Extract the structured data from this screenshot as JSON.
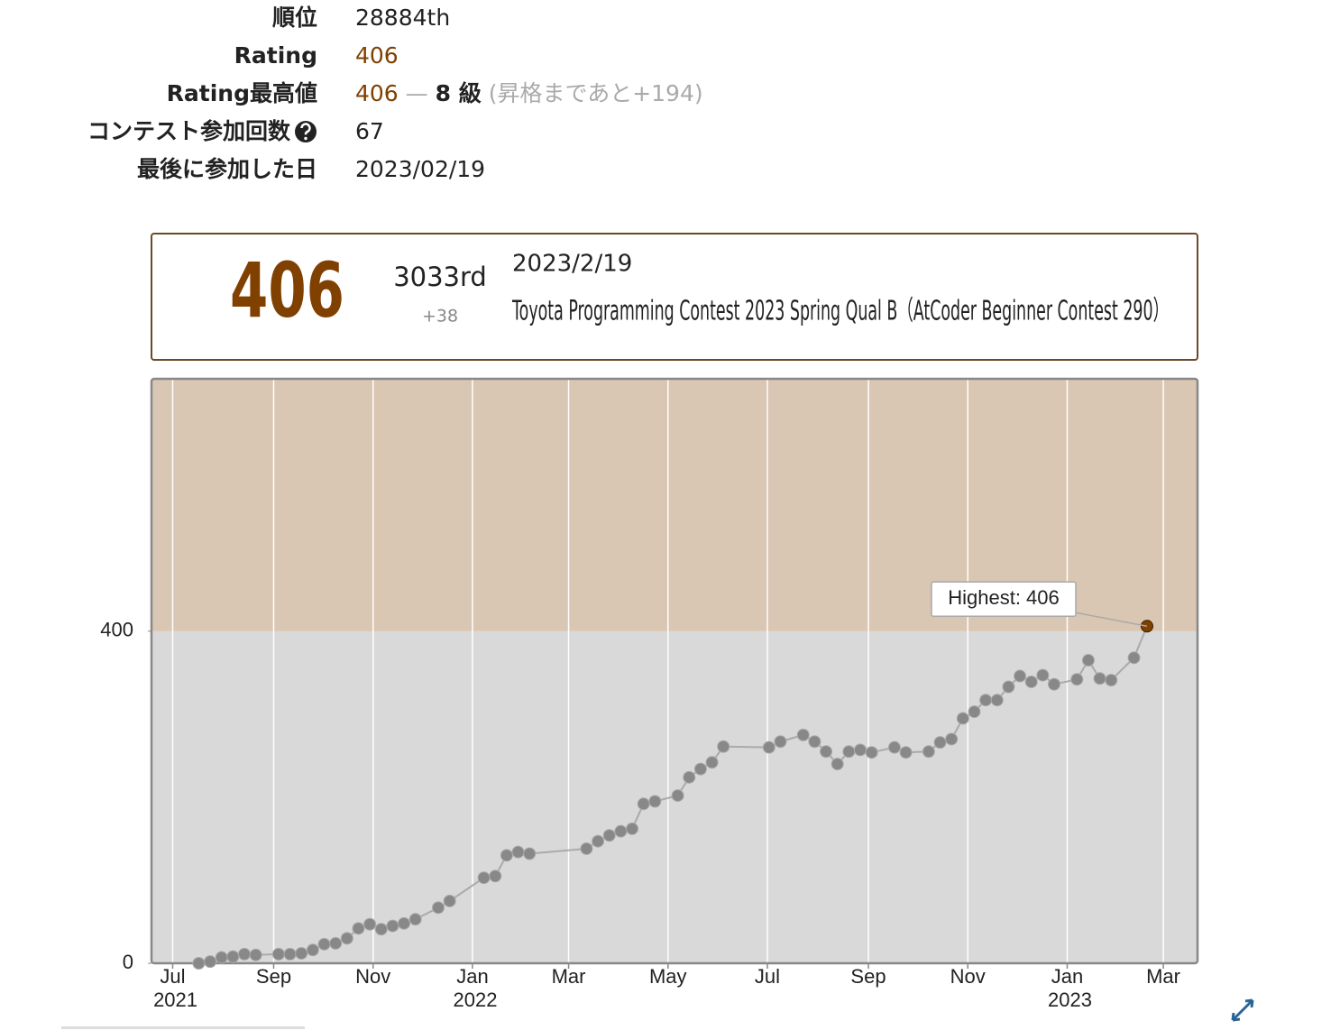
{
  "profile": {
    "rows": [
      {
        "label": "順位",
        "value": "28884th"
      },
      {
        "label": "Rating",
        "value": "406"
      },
      {
        "label": "Rating最高値",
        "value": {
          "rating": "406",
          "separator": "—",
          "rank": "8 級",
          "note": "(昇格まであと+194)"
        }
      },
      {
        "label": "コンテスト参加回数",
        "value": "67"
      },
      {
        "label": "最後に参加した日",
        "value": "2023/02/19"
      }
    ]
  },
  "card": {
    "rating": "406",
    "place": "3033rd",
    "diff": "+38",
    "date": "2023/2/19",
    "contest": "Toyota Programming Contest 2023 Spring Qual B（AtCoder Beginner Contest 290）"
  },
  "chart_data": {
    "type": "line",
    "x": [
      "2021-07-17",
      "2021-07-24",
      "2021-07-31",
      "2021-08-07",
      "2021-08-14",
      "2021-08-21",
      "2021-09-04",
      "2021-09-11",
      "2021-09-18",
      "2021-09-25",
      "2021-10-02",
      "2021-10-09",
      "2021-10-16",
      "2021-10-23",
      "2021-10-30",
      "2021-11-06",
      "2021-11-13",
      "2021-11-20",
      "2021-11-27",
      "2021-12-11",
      "2021-12-18",
      "2022-01-08",
      "2022-01-15",
      "2022-01-22",
      "2022-01-29",
      "2022-02-05",
      "2022-03-12",
      "2022-03-19",
      "2022-03-26",
      "2022-04-02",
      "2022-04-09",
      "2022-04-16",
      "2022-04-23",
      "2022-05-07",
      "2022-05-14",
      "2022-05-21",
      "2022-05-28",
      "2022-06-04",
      "2022-07-02",
      "2022-07-09",
      "2022-07-23",
      "2022-07-30",
      "2022-08-06",
      "2022-08-13",
      "2022-08-20",
      "2022-08-27",
      "2022-09-03",
      "2022-09-17",
      "2022-09-24",
      "2022-10-08",
      "2022-10-15",
      "2022-10-22",
      "2022-10-29",
      "2022-11-05",
      "2022-11-12",
      "2022-11-19",
      "2022-11-26",
      "2022-12-03",
      "2022-12-10",
      "2022-12-17",
      "2022-12-24",
      "2023-01-07",
      "2023-01-14",
      "2023-01-21",
      "2023-01-28",
      "2023-02-11",
      "2023-02-19"
    ],
    "series": [
      {
        "name": "Rating",
        "color": "#888888",
        "values": [
          0,
          2,
          7,
          8,
          11,
          10,
          11,
          11,
          12,
          16,
          23,
          24,
          30,
          42,
          47,
          41,
          45,
          48,
          53,
          67,
          75,
          103,
          105,
          130,
          134,
          132,
          138,
          147,
          154,
          159,
          162,
          192,
          195,
          202,
          224,
          234,
          242,
          261,
          260,
          267,
          275,
          267,
          255,
          240,
          255,
          257,
          254,
          260,
          254,
          255,
          266,
          270,
          295,
          303,
          317,
          317,
          333,
          346,
          339,
          347,
          336,
          342,
          365,
          343,
          341,
          368,
          406
        ]
      }
    ],
    "highlight_color": "#804000",
    "annotation": "Highest: 406",
    "xlim": [
      "2021-06-18",
      "2023-03-22"
    ],
    "xticks": [
      {
        "value": "2021-07-01",
        "label": "Jul 2021"
      },
      {
        "value": "2021-09-01",
        "label": "Sep"
      },
      {
        "value": "2021-11-01",
        "label": "Nov"
      },
      {
        "value": "2022-01-01",
        "label": "Jan 2022"
      },
      {
        "value": "2022-03-01",
        "label": "Mar"
      },
      {
        "value": "2022-05-01",
        "label": "May"
      },
      {
        "value": "2022-07-01",
        "label": "Jul"
      },
      {
        "value": "2022-09-01",
        "label": "Sep"
      },
      {
        "value": "2022-11-01",
        "label": "Nov"
      },
      {
        "value": "2023-01-01",
        "label": "Jan 2023"
      },
      {
        "value": "2023-03-01",
        "label": "Mar"
      }
    ],
    "ylim": [
      0,
      704
    ],
    "yticks": [
      0,
      400
    ],
    "grid": "x",
    "bands": [
      {
        "from": 0,
        "to": 400,
        "color": "#d9d9d9"
      },
      {
        "from": 400,
        "to": 800,
        "color": "#d9c6b3"
      }
    ]
  }
}
